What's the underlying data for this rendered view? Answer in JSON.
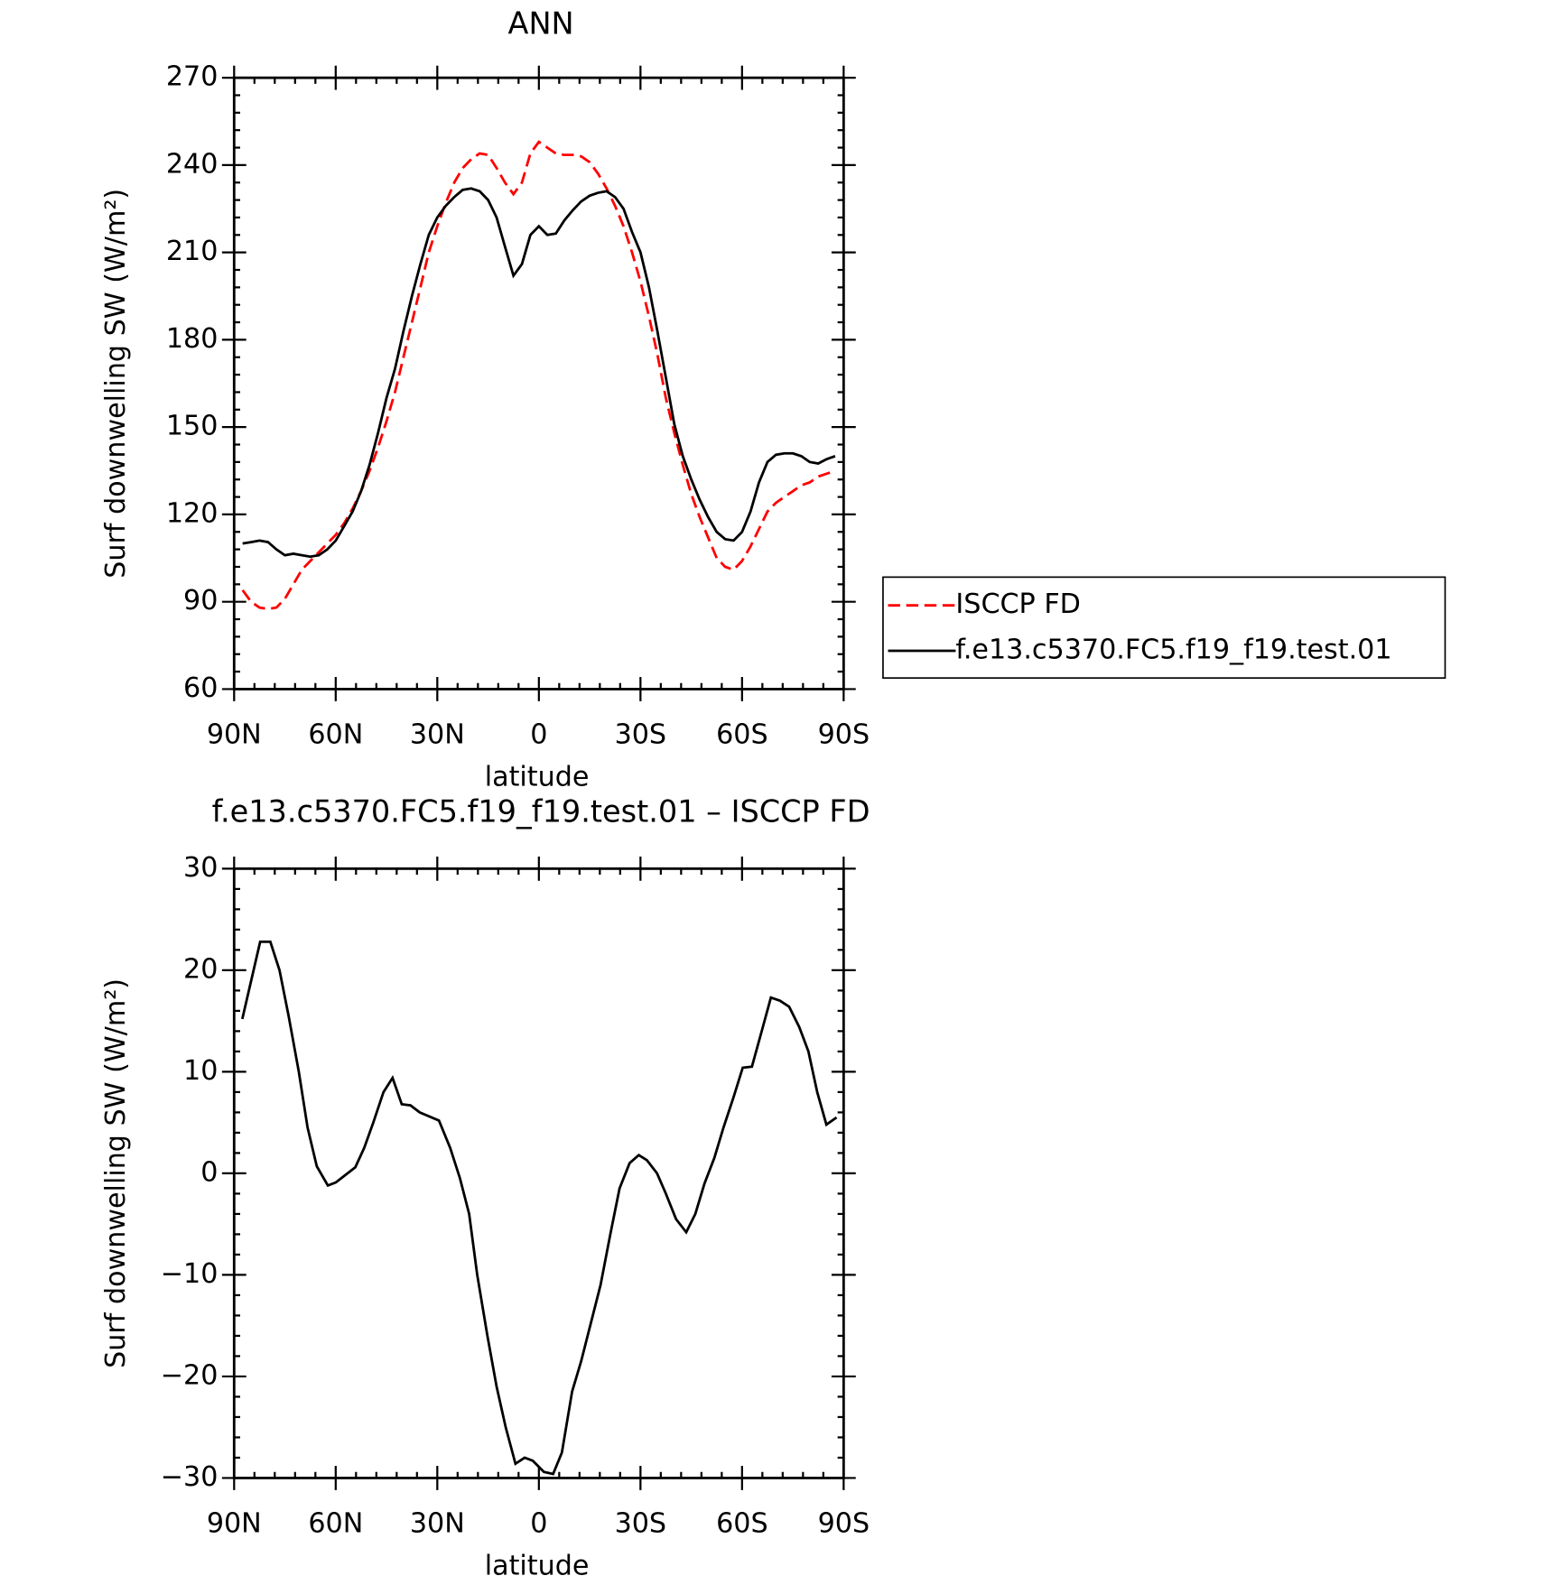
{
  "chart_data": [
    {
      "type": "line",
      "title": "ANN",
      "xlabel": "latitude",
      "ylabel": "Surf downwelling SW (W/m²)",
      "xlim": [
        90,
        -90
      ],
      "ylim": [
        60,
        270
      ],
      "xticks": [
        {
          "value": 90,
          "label": "90N"
        },
        {
          "value": 60,
          "label": "60N"
        },
        {
          "value": 30,
          "label": "30N"
        },
        0,
        {
          "value": -30,
          "label": "30S"
        },
        {
          "value": -60,
          "label": "60S"
        },
        {
          "value": -90,
          "label": "90S"
        }
      ],
      "yticks": [
        60,
        90,
        120,
        150,
        180,
        210,
        240,
        270
      ],
      "legend": "right",
      "x": [
        87.5,
        85,
        82.5,
        80,
        77.5,
        75,
        72.5,
        70,
        67.5,
        65,
        62.5,
        60,
        57.5,
        55,
        52.5,
        50,
        47.5,
        45,
        42.5,
        40,
        37.5,
        35,
        32.5,
        30,
        27.5,
        25,
        22.5,
        20,
        17.5,
        15,
        12.5,
        10,
        7.5,
        5,
        2.5,
        0,
        -2.5,
        -5,
        -7.5,
        -10,
        -12.5,
        -15,
        -17.5,
        -20,
        -22.5,
        -25,
        -27.5,
        -30,
        -32.5,
        -35,
        -37.5,
        -40,
        -42.5,
        -45,
        -47.5,
        -50,
        -52.5,
        -55,
        -57.5,
        -60,
        -62.5,
        -65,
        -67.5,
        -70,
        -72.5,
        -75,
        -77.5,
        -80,
        -82.5,
        -85,
        -87.5
      ],
      "series": [
        {
          "name": "ISCCP FD",
          "color": "#ff0000",
          "linestyle": "dashed",
          "values": [
            94,
            90,
            88,
            87.5,
            88,
            91,
            96,
            101,
            104,
            107,
            110,
            113,
            117,
            122,
            128,
            135,
            143,
            152,
            162,
            174,
            186,
            198,
            210,
            219,
            227,
            234,
            239,
            242,
            244,
            243.5,
            239,
            234,
            230,
            234,
            244,
            248,
            246,
            244,
            243.5,
            243.5,
            243,
            241,
            237,
            232,
            226,
            219,
            210,
            200,
            188,
            175,
            160,
            148,
            137,
            127,
            119,
            112,
            105,
            102,
            101,
            104,
            109,
            115,
            121,
            124,
            126,
            128,
            130,
            131,
            133,
            134,
            135
          ]
        },
        {
          "name": "f.e13.c5370.FC5.f19_f19.test.01",
          "color": "#000000",
          "linestyle": "solid",
          "values": [
            110,
            110.5,
            111,
            110.5,
            108,
            106,
            106.5,
            106,
            105.5,
            106,
            108,
            111,
            116,
            121,
            128,
            137,
            148,
            160,
            170,
            183,
            195,
            206,
            216,
            222,
            226,
            229,
            231.5,
            232,
            231,
            228,
            222,
            212,
            202,
            206,
            216,
            219,
            216,
            216.5,
            221,
            224.5,
            227.5,
            229.5,
            230.5,
            231,
            229,
            225,
            217,
            210,
            198,
            183,
            167,
            151,
            140,
            132,
            125,
            119,
            114,
            111.5,
            111,
            114,
            121,
            131,
            138,
            140.5,
            141,
            141,
            140,
            138,
            137.5,
            139,
            140
          ]
        }
      ]
    },
    {
      "type": "line",
      "title": "f.e13.c5370.FC5.f19_f19.test.01 – ISCCP FD",
      "xlabel": "latitude",
      "ylabel": "Surf downwelling SW (W/m²)",
      "xlim": [
        90,
        -90
      ],
      "ylim": [
        -30,
        30
      ],
      "xticks": [
        {
          "value": 90,
          "label": "90N"
        },
        {
          "value": 60,
          "label": "60N"
        },
        {
          "value": 30,
          "label": "30N"
        },
        0,
        {
          "value": -30,
          "label": "30S"
        },
        {
          "value": -60,
          "label": "60S"
        },
        {
          "value": -90,
          "label": "90S"
        }
      ],
      "yticks": [
        {
          "value": -30,
          "label": "−30"
        },
        {
          "value": -20,
          "label": "−20"
        },
        {
          "value": -10,
          "label": "−10"
        },
        0,
        10,
        20,
        30
      ],
      "color": "#000000",
      "x": [
        87.6,
        82.3,
        79.3,
        76.6,
        73.9,
        70.9,
        68.3,
        65.6,
        62.3,
        60,
        54.2,
        51.6,
        48.9,
        45.9,
        43.2,
        40.5,
        37.9,
        35.2,
        29.5,
        26.2,
        23.3,
        20.6,
        18.2,
        15.2,
        12.5,
        9.8,
        6.9,
        4.2,
        1.8,
        -1.5,
        -4.2,
        -6.8,
        -9.8,
        -12.5,
        -18.2,
        -21.1,
        -23.8,
        -26.8,
        -29.5,
        -31.9,
        -34.9,
        -37.5,
        -40.5,
        -43.5,
        -46.2,
        -48.9,
        -51.8,
        -54.5,
        -57.5,
        -60.2,
        -62.9,
        -65.8,
        -68.5,
        -71.2,
        -73.9,
        -76.9,
        -79.6,
        -82.2,
        -84.9,
        -87.9
      ],
      "values": [
        15.2,
        22.8,
        22.8,
        20,
        15.5,
        10,
        4.5,
        0.7,
        -1.2,
        -0.9,
        0.6,
        2.5,
        5,
        8,
        9.4,
        6.8,
        6.7,
        6,
        5.2,
        2.5,
        -0.5,
        -4,
        -10,
        -16,
        -21,
        -25,
        -28.6,
        -28,
        -28.3,
        -29.4,
        -29.6,
        -27.5,
        -21.5,
        -18.5,
        -11,
        -6,
        -1.5,
        1,
        1.8,
        1.3,
        0,
        -2,
        -4.5,
        -5.8,
        -4,
        -1,
        1.5,
        4.5,
        7.5,
        10.4,
        10.5,
        14,
        17.3,
        17,
        16.4,
        14.4,
        12,
        8,
        4.8,
        5.5
      ]
    }
  ]
}
